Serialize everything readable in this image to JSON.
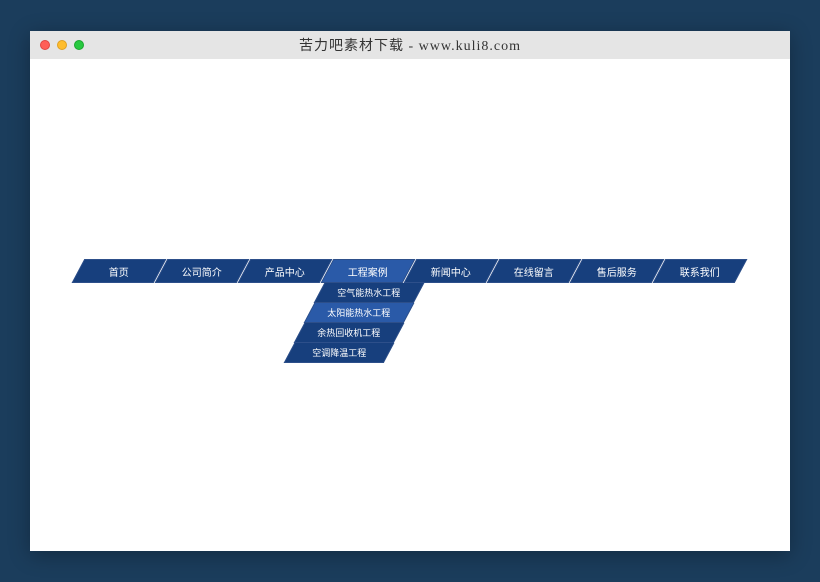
{
  "window": {
    "title": "苦力吧素材下载 - www.kuli8.com"
  },
  "colors": {
    "page_bg": "#1b3d5c",
    "nav_bg": "#173f7d",
    "nav_active_bg": "#2a5aa8",
    "nav_border": "#2d4f8a",
    "text": "#ffffff",
    "titlebar_bg": "#e5e5e5"
  },
  "nav": {
    "items": [
      {
        "label": "首页",
        "active": false
      },
      {
        "label": "公司简介",
        "active": false
      },
      {
        "label": "产品中心",
        "active": false
      },
      {
        "label": "工程案例",
        "active": true,
        "dropdown": [
          {
            "label": "空气能热水工程",
            "hover": false
          },
          {
            "label": "太阳能热水工程",
            "hover": true
          },
          {
            "label": "余热回收机工程",
            "hover": false
          },
          {
            "label": "空调降温工程",
            "hover": false
          }
        ]
      },
      {
        "label": "新闻中心",
        "active": false
      },
      {
        "label": "在线留言",
        "active": false
      },
      {
        "label": "售后服务",
        "active": false
      },
      {
        "label": "联系我们",
        "active": false
      }
    ]
  }
}
